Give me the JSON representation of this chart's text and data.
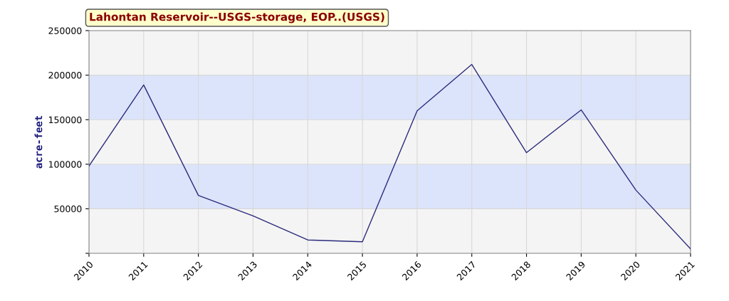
{
  "chart_data": {
    "type": "line",
    "title": "Lahontan Reservoir--USGS-storage, EOP..(USGS)",
    "ylabel": "acre-feet",
    "categories": [
      "2010",
      "2011",
      "2012",
      "2013",
      "2014",
      "2015",
      "2016",
      "2017",
      "2018",
      "2019",
      "2020",
      "2021"
    ],
    "series": [
      {
        "color": "#2b2b7c",
        "values": [
          98000,
          189000,
          65000,
          42000,
          15000,
          13000,
          160000,
          212000,
          113000,
          161000,
          71000,
          5000
        ]
      }
    ],
    "ylim": [
      0,
      250000
    ],
    "yticks": [
      {
        "value": 0,
        "label": null
      },
      50000,
      100000,
      150000,
      200000,
      250000
    ],
    "bands": [
      {
        "axis": "y",
        "from": 0,
        "to": 50000,
        "color": "#f4f4f4"
      },
      {
        "axis": "y",
        "from": 50000,
        "to": 100000,
        "color": "#dce4fb"
      },
      {
        "axis": "y",
        "from": 100000,
        "to": 150000,
        "color": "#f4f4f4"
      },
      {
        "axis": "y",
        "from": 150000,
        "to": 200000,
        "color": "#dce4fb"
      },
      {
        "axis": "y",
        "from": 200000,
        "to": 250000,
        "color": "#f4f4f4"
      }
    ],
    "grid": true,
    "marker": "none",
    "line_style": "solid"
  }
}
